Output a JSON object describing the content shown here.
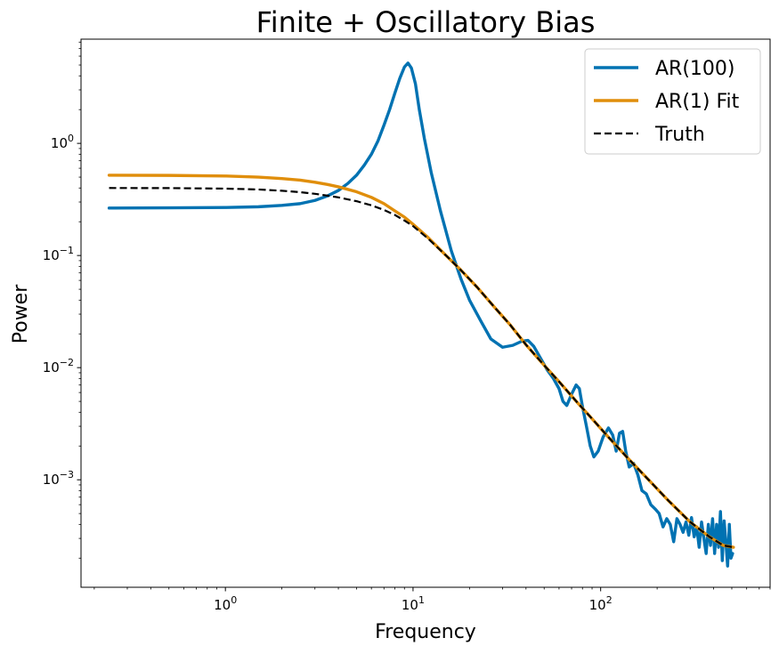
{
  "chart_data": {
    "type": "line",
    "title": "Finite + Oscillatory Bias",
    "xlabel": "Frequency",
    "ylabel": "Power",
    "xscale": "log",
    "yscale": "log",
    "xlim": [
      0.17,
      800
    ],
    "ylim": [
      0.00011,
      8.5
    ],
    "grid": false,
    "legend_position": "upper right",
    "x_ticks": [
      {
        "value": 1,
        "base": "10",
        "exp": "0"
      },
      {
        "value": 10,
        "base": "10",
        "exp": "1"
      },
      {
        "value": 100,
        "base": "10",
        "exp": "2"
      }
    ],
    "y_ticks": [
      {
        "value": 1,
        "base": "10",
        "exp": "0"
      },
      {
        "value": 0.1,
        "base": "10",
        "exp": "−1"
      },
      {
        "value": 0.01,
        "base": "10",
        "exp": "−2"
      },
      {
        "value": 0.001,
        "base": "10",
        "exp": "−3"
      }
    ],
    "series": [
      {
        "name": "AR(100)",
        "color": "#0072b2",
        "style": "solid",
        "points": [
          [
            0.24,
            0.265
          ],
          [
            0.5,
            0.266
          ],
          [
            1,
            0.268
          ],
          [
            1.5,
            0.272
          ],
          [
            2,
            0.28
          ],
          [
            2.5,
            0.29
          ],
          [
            3,
            0.31
          ],
          [
            3.5,
            0.34
          ],
          [
            4,
            0.38
          ],
          [
            4.5,
            0.44
          ],
          [
            5,
            0.52
          ],
          [
            5.5,
            0.64
          ],
          [
            6,
            0.8
          ],
          [
            6.5,
            1.05
          ],
          [
            7,
            1.45
          ],
          [
            7.5,
            2.0
          ],
          [
            8,
            2.8
          ],
          [
            8.5,
            3.8
          ],
          [
            9,
            4.8
          ],
          [
            9.4,
            5.2
          ],
          [
            9.8,
            4.7
          ],
          [
            10.3,
            3.4
          ],
          [
            10.8,
            2.0
          ],
          [
            11.5,
            1.1
          ],
          [
            12.5,
            0.55
          ],
          [
            14,
            0.25
          ],
          [
            16,
            0.11
          ],
          [
            18,
            0.062
          ],
          [
            20,
            0.04
          ],
          [
            23,
            0.026
          ],
          [
            26,
            0.018
          ],
          [
            30,
            0.0152
          ],
          [
            34,
            0.0158
          ],
          [
            38,
            0.0172
          ],
          [
            41,
            0.0175
          ],
          [
            44,
            0.0155
          ],
          [
            48,
            0.012
          ],
          [
            52,
            0.0095
          ],
          [
            56,
            0.008
          ],
          [
            60,
            0.0065
          ],
          [
            63,
            0.005
          ],
          [
            66,
            0.0046
          ],
          [
            70,
            0.0058
          ],
          [
            74,
            0.007
          ],
          [
            77,
            0.0065
          ],
          [
            80,
            0.0045
          ],
          [
            84,
            0.003
          ],
          [
            88,
            0.002
          ],
          [
            92,
            0.0016
          ],
          [
            97,
            0.0018
          ],
          [
            103,
            0.0024
          ],
          [
            110,
            0.0029
          ],
          [
            116,
            0.0025
          ],
          [
            121,
            0.0018
          ],
          [
            126,
            0.0026
          ],
          [
            131,
            0.0027
          ],
          [
            136,
            0.0018
          ],
          [
            142,
            0.0013
          ],
          [
            150,
            0.0014
          ],
          [
            158,
            0.0011
          ],
          [
            166,
            0.0008
          ],
          [
            175,
            0.00075
          ],
          [
            185,
            0.0006
          ],
          [
            195,
            0.00055
          ],
          [
            205,
            0.0005
          ],
          [
            215,
            0.00038
          ],
          [
            225,
            0.00045
          ],
          [
            235,
            0.0004
          ],
          [
            245,
            0.00028
          ],
          [
            255,
            0.00045
          ],
          [
            265,
            0.0004
          ],
          [
            275,
            0.00034
          ],
          [
            285,
            0.00042
          ],
          [
            295,
            0.00032
          ],
          [
            305,
            0.00046
          ],
          [
            315,
            0.00031
          ],
          [
            325,
            0.00038
          ],
          [
            335,
            0.00025
          ],
          [
            345,
            0.00042
          ],
          [
            355,
            0.0003
          ],
          [
            365,
            0.00022
          ],
          [
            375,
            0.0004
          ],
          [
            385,
            0.00026
          ],
          [
            395,
            0.00045
          ],
          [
            405,
            0.00022
          ],
          [
            415,
            0.0004
          ],
          [
            425,
            0.00025
          ],
          [
            435,
            0.00052
          ],
          [
            445,
            0.00019
          ],
          [
            455,
            0.00043
          ],
          [
            465,
            0.00028
          ],
          [
            475,
            0.00017
          ],
          [
            485,
            0.0004
          ],
          [
            495,
            0.0002
          ],
          [
            505,
            0.00022
          ]
        ]
      },
      {
        "name": "AR(1) Fit",
        "color": "#e08e0b",
        "style": "solid",
        "points": [
          [
            0.24,
            0.52
          ],
          [
            0.5,
            0.518
          ],
          [
            1,
            0.512
          ],
          [
            1.5,
            0.5
          ],
          [
            2,
            0.485
          ],
          [
            2.5,
            0.47
          ],
          [
            3,
            0.45
          ],
          [
            3.5,
            0.43
          ],
          [
            4,
            0.41
          ],
          [
            5,
            0.37
          ],
          [
            6,
            0.33
          ],
          [
            7,
            0.29
          ],
          [
            8,
            0.25
          ],
          [
            9,
            0.22
          ],
          [
            10,
            0.19
          ],
          [
            12,
            0.145
          ],
          [
            15,
            0.1
          ],
          [
            18,
            0.074
          ],
          [
            22,
            0.052
          ],
          [
            27,
            0.035
          ],
          [
            33,
            0.024
          ],
          [
            40,
            0.016
          ],
          [
            50,
            0.0105
          ],
          [
            60,
            0.0075
          ],
          [
            75,
            0.0049
          ],
          [
            90,
            0.0035
          ],
          [
            110,
            0.0024
          ],
          [
            140,
            0.00155
          ],
          [
            180,
            0.001
          ],
          [
            230,
            0.00065
          ],
          [
            300,
            0.00042
          ],
          [
            380,
            0.00031
          ],
          [
            450,
            0.00026
          ],
          [
            510,
            0.00025
          ]
        ]
      },
      {
        "name": "Truth",
        "color": "#000000",
        "style": "dashed",
        "points": [
          [
            0.24,
            0.4
          ],
          [
            0.5,
            0.399
          ],
          [
            1,
            0.395
          ],
          [
            1.5,
            0.388
          ],
          [
            2,
            0.378
          ],
          [
            2.5,
            0.367
          ],
          [
            3,
            0.355
          ],
          [
            3.5,
            0.342
          ],
          [
            4,
            0.33
          ],
          [
            5,
            0.305
          ],
          [
            6,
            0.28
          ],
          [
            7,
            0.255
          ],
          [
            8,
            0.23
          ],
          [
            9,
            0.205
          ],
          [
            10,
            0.183
          ],
          [
            12,
            0.142
          ],
          [
            15,
            0.1
          ],
          [
            18,
            0.074
          ],
          [
            22,
            0.052
          ],
          [
            27,
            0.035
          ],
          [
            33,
            0.024
          ],
          [
            40,
            0.016
          ],
          [
            50,
            0.0105
          ],
          [
            60,
            0.0075
          ],
          [
            75,
            0.0049
          ],
          [
            90,
            0.0035
          ],
          [
            110,
            0.0024
          ],
          [
            140,
            0.00155
          ],
          [
            180,
            0.001
          ],
          [
            230,
            0.00065
          ],
          [
            300,
            0.00042
          ],
          [
            380,
            0.00031
          ],
          [
            450,
            0.00026
          ],
          [
            510,
            0.00025
          ]
        ]
      }
    ]
  }
}
